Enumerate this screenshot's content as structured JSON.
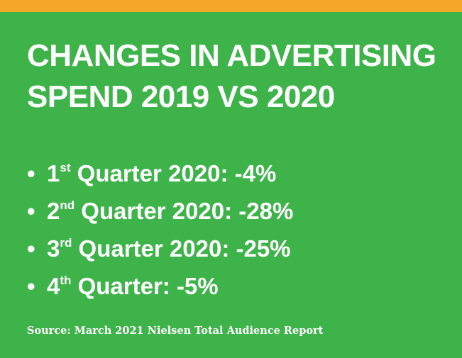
{
  "colors": {
    "background": "#3eb34a",
    "top_bar": "#f5a72a",
    "text": "#ffffff"
  },
  "title": {
    "line1": "CHANGES IN ADVERTISING",
    "line2": "SPEND 2019 VS 2020"
  },
  "bullet_symbol": "•",
  "items": [
    {
      "num": "1",
      "suffix": "st",
      "text": " Quarter 2020: -4%"
    },
    {
      "num": "2",
      "suffix": "nd",
      "text": " Quarter 2020: -28%"
    },
    {
      "num": "3",
      "suffix": "rd",
      "text": " Quarter 2020: -25%"
    },
    {
      "num": "4",
      "suffix": "th",
      "text": " Quarter: -5%"
    }
  ],
  "source": "Source:  March 2021 Nielsen Total Audience Report"
}
